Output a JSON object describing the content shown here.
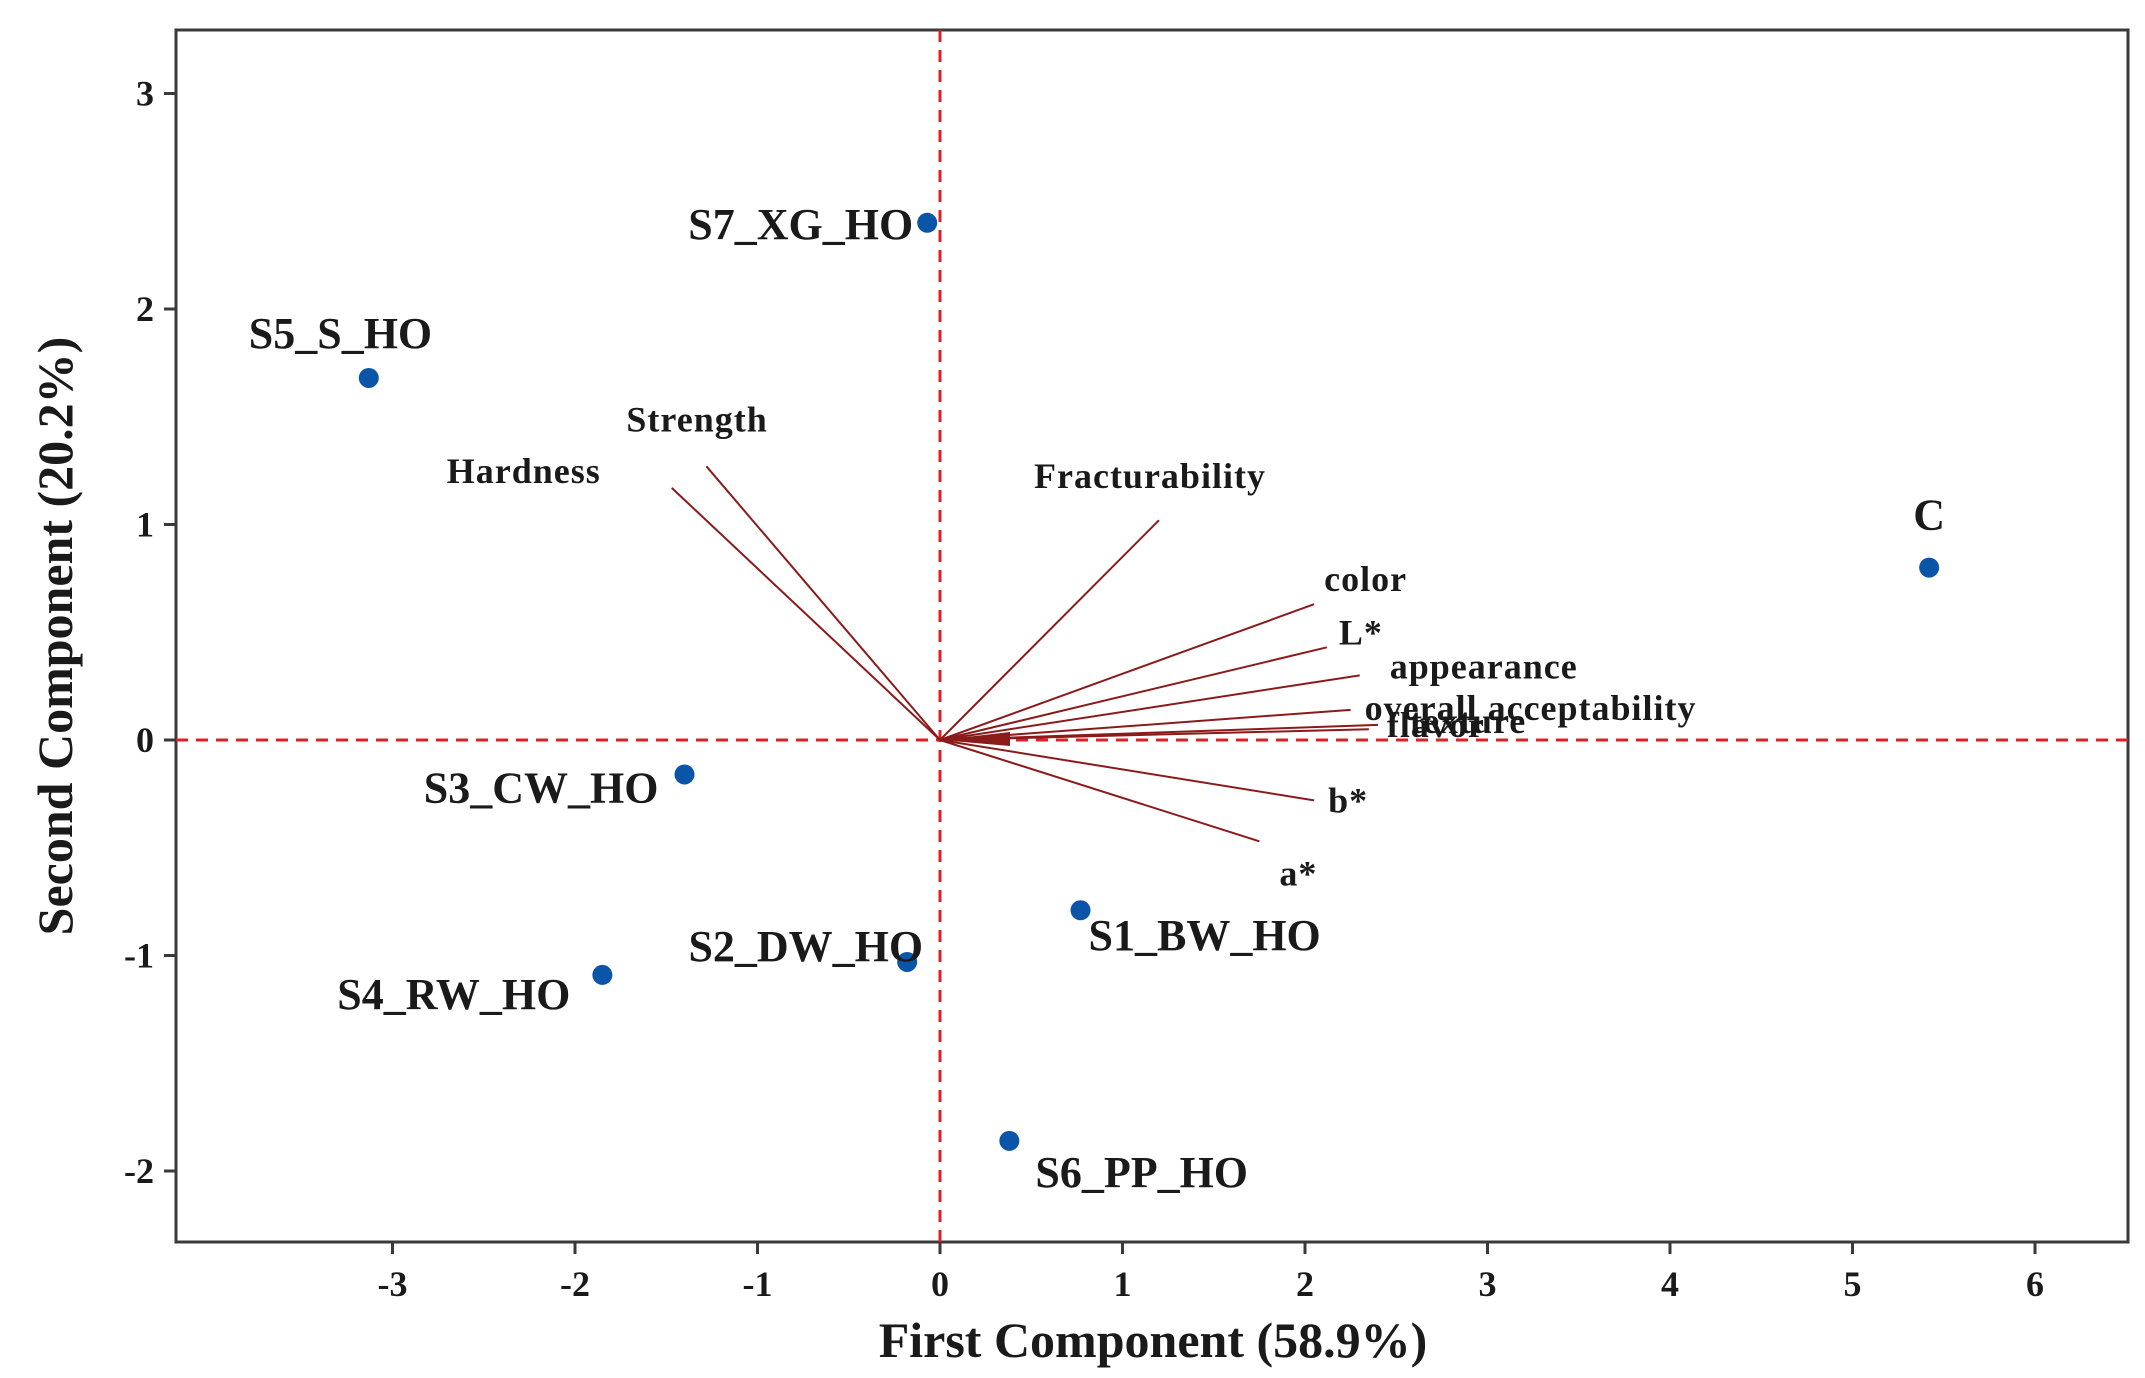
{
  "chart_data": {
    "type": "scatter",
    "subtype": "biplot",
    "title": "",
    "xlabel": "First Component (58.9%)",
    "ylabel": "Second Component (20.2%)",
    "xlim": [
      -4.2,
      6.5
    ],
    "ylim": [
      -2.3,
      3.3
    ],
    "xticks": [
      -3,
      -2,
      -1,
      0,
      1,
      2,
      3,
      4,
      5,
      6
    ],
    "yticks": [
      -2,
      -1,
      0,
      1,
      2,
      3
    ],
    "reference_lines": {
      "x": 0,
      "y": 0,
      "style": "dashed"
    },
    "colors": {
      "points": "#0b55a8",
      "vectors": "#8b1a1a",
      "reference": "#dd1f26",
      "frame": "#3a3a3a"
    },
    "points": [
      {
        "label": "S7_XG_HO",
        "x": -0.07,
        "y": 2.4
      },
      {
        "label": "S5_S_HO",
        "x": -3.13,
        "y": 1.68
      },
      {
        "label": "C",
        "x": 5.42,
        "y": 0.8
      },
      {
        "label": "S3_CW_HO",
        "x": -1.4,
        "y": -0.16
      },
      {
        "label": "S1_BW_HO",
        "x": 0.77,
        "y": -0.79
      },
      {
        "label": "S2_DW_HO",
        "x": -0.18,
        "y": -1.03
      },
      {
        "label": "S4_RW_HO",
        "x": -1.85,
        "y": -1.09
      },
      {
        "label": "S6_PP_HO",
        "x": 0.38,
        "y": -1.86
      }
    ],
    "vectors": [
      {
        "label": "Strength",
        "x": -1.28,
        "y": 1.27
      },
      {
        "label": "Hardness",
        "x": -1.47,
        "y": 1.17
      },
      {
        "label": "Fracturability",
        "x": 1.2,
        "y": 1.02
      },
      {
        "label": "color",
        "x": 2.05,
        "y": 0.63
      },
      {
        "label": "L*",
        "x": 2.12,
        "y": 0.43
      },
      {
        "label": "appearance",
        "x": 2.3,
        "y": 0.3
      },
      {
        "label": "overall acceptability",
        "x": 2.25,
        "y": 0.14
      },
      {
        "label": "texture",
        "x": 2.4,
        "y": 0.07
      },
      {
        "label": "flavor",
        "x": 2.35,
        "y": 0.05
      },
      {
        "label": "b*",
        "x": 2.05,
        "y": -0.28
      },
      {
        "label": "a*",
        "x": 1.75,
        "y": -0.47
      }
    ]
  }
}
